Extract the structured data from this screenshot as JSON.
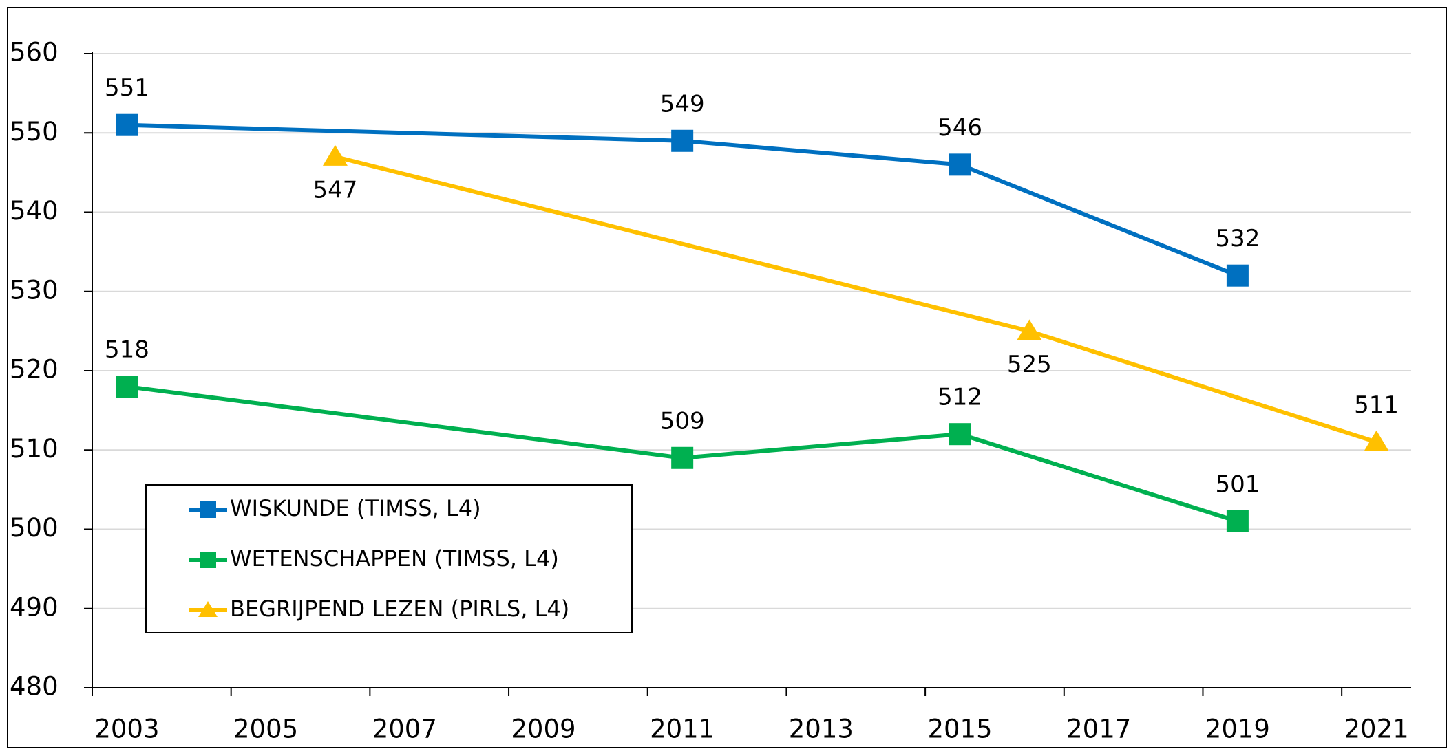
{
  "chart_data": {
    "type": "line",
    "xticks": [
      2003,
      2005,
      2007,
      2009,
      2011,
      2013,
      2015,
      2017,
      2019,
      2021
    ],
    "xlim": [
      2003,
      2022
    ],
    "ylim": [
      480,
      560
    ],
    "yticks": [
      480,
      490,
      500,
      510,
      520,
      530,
      540,
      550,
      560
    ],
    "grid": true,
    "legend": "lower-left",
    "series": [
      {
        "name": "WISKUNDE (TIMSS, L4)",
        "color": "#0070c0",
        "marker": "square",
        "x": [
          2003,
          2011,
          2015,
          2019
        ],
        "values": [
          551,
          549,
          546,
          532
        ]
      },
      {
        "name": "WETENSCHAPPEN (TIMSS, L4)",
        "color": "#00b050",
        "marker": "square",
        "x": [
          2003,
          2011,
          2015,
          2019
        ],
        "values": [
          518,
          509,
          512,
          501
        ]
      },
      {
        "name": "BEGRIJPEND LEZEN (PIRLS, L4)",
        "color": "#ffc000",
        "marker": "triangle",
        "x": [
          2006,
          2016,
          2021
        ],
        "values": [
          547,
          525,
          511
        ]
      }
    ]
  }
}
